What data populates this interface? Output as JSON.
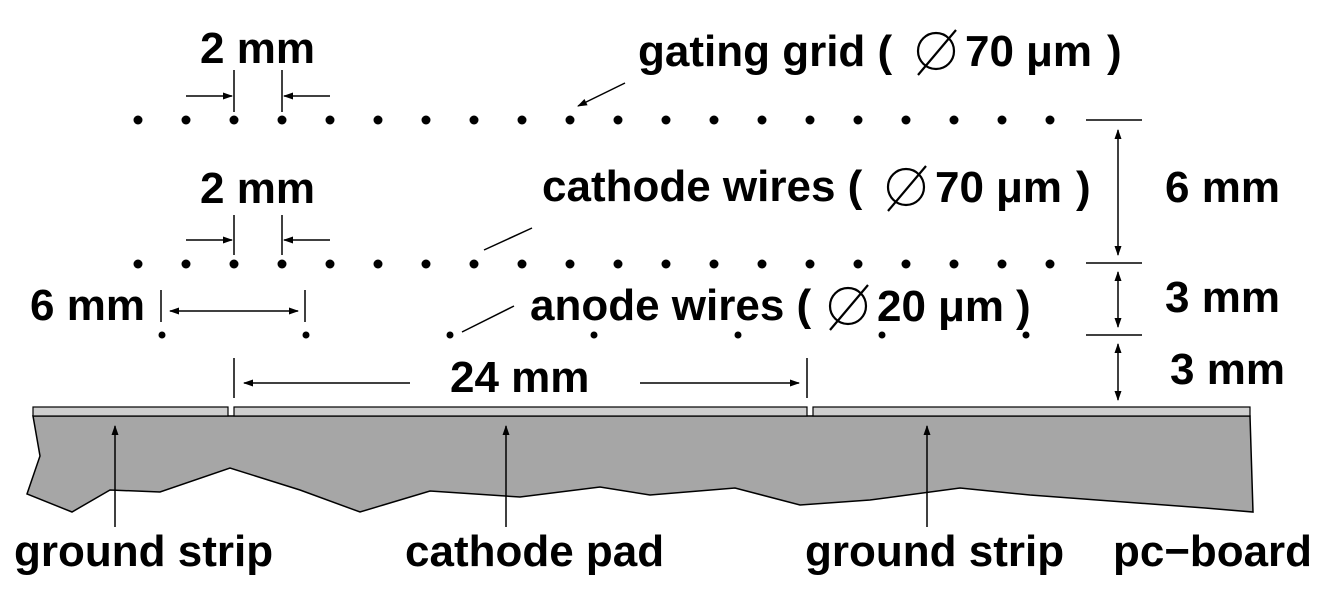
{
  "labels": {
    "gating_spacing": "2 mm",
    "gating_prefix": "gating grid (",
    "gating_diam": "70",
    "cathode_spacing": "2 mm",
    "cathode_prefix": "cathode wires (",
    "cathode_diam": "70",
    "anode_spacing": "6 mm",
    "anode_prefix": "anode wires (",
    "anode_diam": "20",
    "micro": "μm",
    "paren_close": ")",
    "pad_width": "24 mm",
    "gap_top": "6 mm",
    "gap_mid": "3 mm",
    "gap_bottom": "3 mm",
    "ground_strip_left": "ground strip",
    "cathode_pad": "cathode pad",
    "ground_strip_right": "ground strip",
    "pc_board": "pc−board"
  },
  "colors": {
    "board": "#a6a6a6",
    "strip": "#cfcfcf",
    "ink": "#000000"
  }
}
